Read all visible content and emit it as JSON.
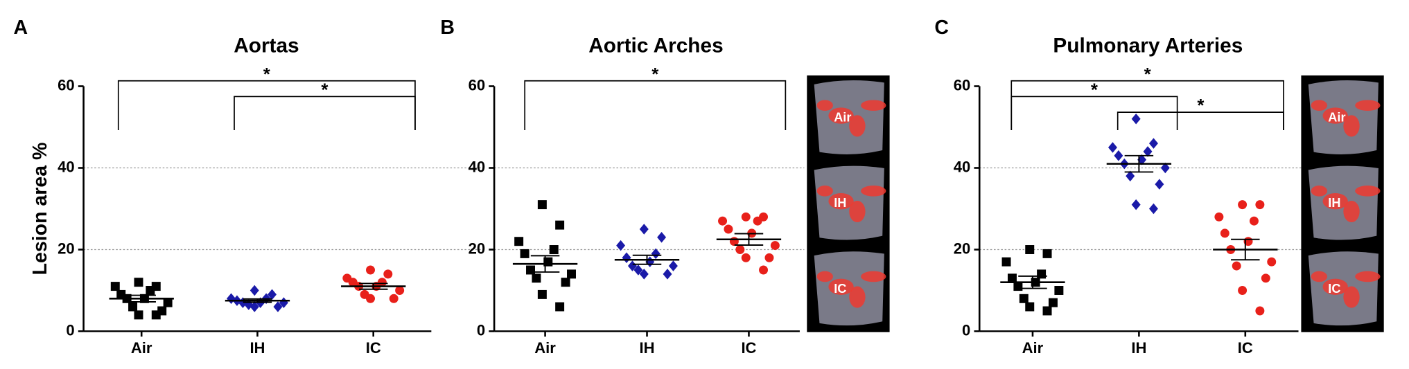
{
  "chart_data": [
    {
      "type": "dot",
      "letter": "A",
      "title": "Aortas",
      "y_label": "Lesion area %",
      "categories": [
        "Air",
        "IH",
        "IC"
      ],
      "colors": [
        "#000000",
        "#1a1aa8",
        "#e8201a"
      ],
      "markers": [
        "square",
        "diamond",
        "circle"
      ],
      "values": [
        [
          12,
          11,
          11,
          10,
          9,
          8,
          8,
          7,
          6,
          5,
          4,
          4
        ],
        [
          10,
          9,
          8,
          8,
          7.5,
          7,
          7,
          7,
          6.5,
          6,
          6
        ],
        [
          15,
          14,
          13,
          12,
          12,
          11,
          11,
          10,
          9,
          8,
          8
        ]
      ],
      "means": [
        8,
        7.5,
        11
      ],
      "sems": [
        0.8,
        0.4,
        0.7
      ],
      "ylim": [
        0,
        60
      ],
      "yticks": [
        0,
        20,
        40,
        60
      ],
      "grid": true,
      "brackets": [
        {
          "text": "*",
          "from": 0,
          "to": 2
        },
        {
          "text": "*",
          "from": 1,
          "to": 2
        }
      ]
    },
    {
      "type": "dot",
      "letter": "B",
      "title": "Aortic Arches",
      "categories": [
        "Air",
        "IH",
        "IC"
      ],
      "colors": [
        "#000000",
        "#1a1aa8",
        "#e8201a"
      ],
      "markers": [
        "square",
        "diamond",
        "circle"
      ],
      "values": [
        [
          31,
          26,
          22,
          20,
          19,
          17,
          15,
          14,
          13,
          12,
          9,
          6
        ],
        [
          25,
          23,
          21,
          19,
          18,
          17,
          16,
          16,
          15,
          14,
          14
        ],
        [
          28,
          28,
          27,
          27,
          25,
          24,
          22,
          21,
          20,
          18,
          18,
          15
        ]
      ],
      "means": [
        16.5,
        17.5,
        22.5
      ],
      "sems": [
        2,
        1.1,
        1.4
      ],
      "ylim": [
        0,
        60
      ],
      "yticks": [
        0,
        20,
        40,
        60
      ],
      "grid": true,
      "brackets": [
        {
          "text": "*",
          "from": 0,
          "to": 2
        }
      ],
      "images": [
        "Air",
        "IH",
        "IC"
      ]
    },
    {
      "type": "dot",
      "letter": "C",
      "title": "Pulmonary Arteries",
      "categories": [
        "Air",
        "IH",
        "IC"
      ],
      "colors": [
        "#000000",
        "#1a1aa8",
        "#e8201a"
      ],
      "markers": [
        "square",
        "diamond",
        "circle"
      ],
      "values": [
        [
          20,
          19,
          17,
          14,
          13,
          12,
          11,
          10,
          8,
          7,
          6,
          5
        ],
        [
          52,
          46,
          45,
          44,
          43,
          42,
          41,
          40,
          38,
          36,
          31,
          30
        ],
        [
          31,
          31,
          28,
          27,
          24,
          22,
          20,
          17,
          16,
          13,
          10,
          5
        ]
      ],
      "means": [
        12,
        41,
        20
      ],
      "sems": [
        1.5,
        2,
        2.5
      ],
      "ylim": [
        0,
        60
      ],
      "yticks": [
        0,
        20,
        40,
        60
      ],
      "grid": true,
      "brackets": [
        {
          "text": "*",
          "from": 0,
          "to": 2
        },
        {
          "text": "*",
          "from": 0,
          "to": 1
        },
        {
          "text": "*",
          "from": 1,
          "to": 2
        }
      ],
      "images": [
        "Air",
        "IH",
        "IC"
      ]
    }
  ]
}
